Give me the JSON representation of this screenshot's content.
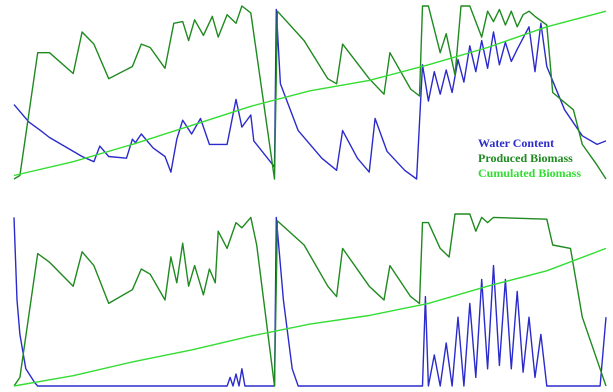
{
  "legend": {
    "items": [
      {
        "label": "Water Content",
        "color": "#2b2bcc"
      },
      {
        "label": "Produced Biomass",
        "color": "#1f8a1f"
      },
      {
        "label": "Cumulated Biomass",
        "color": "#33dd33"
      }
    ]
  },
  "chart_data": [
    {
      "type": "line",
      "title": "",
      "xlabel": "",
      "ylabel": "",
      "ylim": [
        0,
        1
      ],
      "grid": false,
      "legend_position": "right",
      "series": [
        {
          "name": "Water Content",
          "color": "#2b2bcc",
          "points": [
            [
              0,
              0.43
            ],
            [
              0.025,
              0.33
            ],
            [
              0.045,
              0.28
            ],
            [
              0.06,
              0.24
            ],
            [
              0.09,
              0.18
            ],
            [
              0.115,
              0.13
            ],
            [
              0.135,
              0.1
            ],
            [
              0.145,
              0.19
            ],
            [
              0.16,
              0.13
            ],
            [
              0.19,
              0.12
            ],
            [
              0.2,
              0.23
            ],
            [
              0.205,
              0.21
            ],
            [
              0.215,
              0.26
            ],
            [
              0.235,
              0.18
            ],
            [
              0.255,
              0.13
            ],
            [
              0.265,
              0.04
            ],
            [
              0.275,
              0.23
            ],
            [
              0.285,
              0.34
            ],
            [
              0.3,
              0.26
            ],
            [
              0.315,
              0.35
            ],
            [
              0.33,
              0.2
            ],
            [
              0.36,
              0.2
            ],
            [
              0.375,
              0.46
            ],
            [
              0.385,
              0.3
            ],
            [
              0.4,
              0.37
            ],
            [
              0.405,
              0.22
            ],
            [
              0.44,
              0.07
            ],
            [
              0.443,
              0.98
            ],
            [
              0.45,
              0.55
            ],
            [
              0.48,
              0.28
            ],
            [
              0.52,
              0.12
            ],
            [
              0.545,
              0.05
            ],
            [
              0.555,
              0.28
            ],
            [
              0.58,
              0.12
            ],
            [
              0.6,
              0.04
            ],
            [
              0.61,
              0.35
            ],
            [
              0.63,
              0.16
            ],
            [
              0.66,
              0.05
            ],
            [
              0.68,
              0.0
            ],
            [
              0.69,
              0.66
            ],
            [
              0.7,
              0.45
            ],
            [
              0.71,
              0.62
            ],
            [
              0.72,
              0.49
            ],
            [
              0.73,
              0.63
            ],
            [
              0.74,
              0.5
            ],
            [
              0.75,
              0.69
            ],
            [
              0.76,
              0.56
            ],
            [
              0.77,
              0.77
            ],
            [
              0.78,
              0.62
            ],
            [
              0.79,
              0.8
            ],
            [
              0.8,
              0.64
            ],
            [
              0.81,
              0.85
            ],
            [
              0.82,
              0.66
            ],
            [
              0.83,
              0.79
            ],
            [
              0.84,
              0.68
            ],
            [
              0.85,
              0.75
            ],
            [
              0.87,
              0.88
            ],
            [
              0.88,
              0.62
            ],
            [
              0.89,
              0.9
            ],
            [
              0.9,
              0.65
            ],
            [
              0.93,
              0.4
            ],
            [
              0.96,
              0.25
            ],
            [
              0.985,
              0.2
            ],
            [
              1.0,
              0.22
            ]
          ]
        },
        {
          "name": "Produced Biomass",
          "color": "#1f8a1f",
          "points": [
            [
              0,
              0.0
            ],
            [
              0.01,
              0.02
            ],
            [
              0.04,
              0.73
            ],
            [
              0.06,
              0.73
            ],
            [
              0.1,
              0.61
            ],
            [
              0.115,
              0.85
            ],
            [
              0.135,
              0.78
            ],
            [
              0.16,
              0.58
            ],
            [
              0.2,
              0.65
            ],
            [
              0.215,
              0.78
            ],
            [
              0.23,
              0.76
            ],
            [
              0.255,
              0.64
            ],
            [
              0.27,
              0.9
            ],
            [
              0.285,
              0.91
            ],
            [
              0.295,
              0.8
            ],
            [
              0.305,
              0.92
            ],
            [
              0.32,
              0.83
            ],
            [
              0.335,
              0.94
            ],
            [
              0.345,
              0.82
            ],
            [
              0.36,
              0.95
            ],
            [
              0.375,
              0.9
            ],
            [
              0.385,
              1.0
            ],
            [
              0.4,
              0.96
            ],
            [
              0.44,
              0.0
            ],
            [
              0.445,
              0.97
            ],
            [
              0.49,
              0.8
            ],
            [
              0.53,
              0.58
            ],
            [
              0.545,
              0.55
            ],
            [
              0.555,
              0.78
            ],
            [
              0.6,
              0.58
            ],
            [
              0.625,
              0.49
            ],
            [
              0.635,
              0.73
            ],
            [
              0.67,
              0.52
            ],
            [
              0.685,
              0.48
            ],
            [
              0.69,
              1.0
            ],
            [
              0.7,
              1.0
            ],
            [
              0.72,
              0.73
            ],
            [
              0.73,
              0.84
            ],
            [
              0.745,
              0.6
            ],
            [
              0.755,
              1.0
            ],
            [
              0.77,
              1.0
            ],
            [
              0.79,
              0.82
            ],
            [
              0.8,
              0.97
            ],
            [
              0.81,
              0.91
            ],
            [
              0.82,
              0.98
            ],
            [
              0.83,
              0.89
            ],
            [
              0.84,
              0.97
            ],
            [
              0.85,
              0.88
            ],
            [
              0.86,
              0.95
            ],
            [
              0.87,
              0.97
            ],
            [
              0.88,
              0.94
            ],
            [
              0.9,
              0.89
            ],
            [
              0.91,
              0.5
            ],
            [
              0.945,
              0.4
            ],
            [
              0.96,
              0.2
            ],
            [
              0.985,
              0.08
            ],
            [
              1.0,
              0.0
            ]
          ]
        },
        {
          "name": "Cumulated Biomass",
          "color": "#33dd33",
          "points": [
            [
              0,
              0.02
            ],
            [
              0.1,
              0.1
            ],
            [
              0.2,
              0.2
            ],
            [
              0.3,
              0.31
            ],
            [
              0.4,
              0.42
            ],
            [
              0.5,
              0.51
            ],
            [
              0.6,
              0.57
            ],
            [
              0.7,
              0.66
            ],
            [
              0.8,
              0.76
            ],
            [
              0.9,
              0.88
            ],
            [
              1.0,
              0.97
            ]
          ]
        }
      ]
    },
    {
      "type": "line",
      "title": "",
      "xlabel": "",
      "ylabel": "",
      "ylim": [
        0,
        1
      ],
      "grid": false,
      "series": [
        {
          "name": "Water Content",
          "color": "#2b2bcc",
          "points": [
            [
              0,
              0.98
            ],
            [
              0.005,
              0.5
            ],
            [
              0.01,
              0.3
            ],
            [
              0.02,
              0.1
            ],
            [
              0.035,
              0.02
            ],
            [
              0.04,
              0.0
            ],
            [
              0.36,
              0.0
            ],
            [
              0.365,
              0.05
            ],
            [
              0.37,
              0.0
            ],
            [
              0.375,
              0.07
            ],
            [
              0.38,
              0.0
            ],
            [
              0.385,
              0.1
            ],
            [
              0.39,
              0.0
            ],
            [
              0.44,
              0.0
            ],
            [
              0.443,
              0.98
            ],
            [
              0.455,
              0.5
            ],
            [
              0.47,
              0.1
            ],
            [
              0.48,
              0.0
            ],
            [
              0.69,
              0.0
            ],
            [
              0.695,
              0.52
            ],
            [
              0.7,
              0.0
            ],
            [
              0.71,
              0.18
            ],
            [
              0.72,
              0.0
            ],
            [
              0.73,
              0.25
            ],
            [
              0.74,
              0.0
            ],
            [
              0.75,
              0.4
            ],
            [
              0.76,
              0.0
            ],
            [
              0.77,
              0.48
            ],
            [
              0.78,
              0.05
            ],
            [
              0.79,
              0.62
            ],
            [
              0.8,
              0.1
            ],
            [
              0.81,
              0.7
            ],
            [
              0.82,
              0.12
            ],
            [
              0.83,
              0.62
            ],
            [
              0.84,
              0.1
            ],
            [
              0.85,
              0.55
            ],
            [
              0.86,
              0.08
            ],
            [
              0.87,
              0.4
            ],
            [
              0.88,
              0.05
            ],
            [
              0.89,
              0.3
            ],
            [
              0.9,
              0.0
            ],
            [
              0.99,
              0.0
            ],
            [
              1.0,
              0.4
            ]
          ]
        },
        {
          "name": "Produced Biomass",
          "color": "#1f8a1f",
          "points": [
            [
              0,
              0.0
            ],
            [
              0.01,
              0.05
            ],
            [
              0.04,
              0.77
            ],
            [
              0.06,
              0.72
            ],
            [
              0.1,
              0.58
            ],
            [
              0.115,
              0.78
            ],
            [
              0.135,
              0.7
            ],
            [
              0.16,
              0.48
            ],
            [
              0.2,
              0.56
            ],
            [
              0.215,
              0.68
            ],
            [
              0.23,
              0.65
            ],
            [
              0.255,
              0.5
            ],
            [
              0.265,
              0.75
            ],
            [
              0.275,
              0.6
            ],
            [
              0.285,
              0.83
            ],
            [
              0.295,
              0.58
            ],
            [
              0.305,
              0.7
            ],
            [
              0.32,
              0.53
            ],
            [
              0.33,
              0.68
            ],
            [
              0.34,
              0.6
            ],
            [
              0.345,
              0.9
            ],
            [
              0.36,
              0.8
            ],
            [
              0.375,
              0.95
            ],
            [
              0.385,
              0.92
            ],
            [
              0.4,
              0.98
            ],
            [
              0.41,
              0.82
            ],
            [
              0.44,
              0.0
            ],
            [
              0.445,
              0.96
            ],
            [
              0.49,
              0.82
            ],
            [
              0.53,
              0.58
            ],
            [
              0.545,
              0.52
            ],
            [
              0.555,
              0.8
            ],
            [
              0.6,
              0.58
            ],
            [
              0.625,
              0.5
            ],
            [
              0.635,
              0.7
            ],
            [
              0.67,
              0.52
            ],
            [
              0.685,
              0.48
            ],
            [
              0.69,
              0.95
            ],
            [
              0.7,
              0.95
            ],
            [
              0.72,
              0.8
            ],
            [
              0.735,
              0.75
            ],
            [
              0.745,
              1.0
            ],
            [
              0.77,
              1.0
            ],
            [
              0.78,
              0.9
            ],
            [
              0.79,
              0.98
            ],
            [
              0.8,
              0.95
            ],
            [
              0.81,
              0.98
            ],
            [
              0.9,
              0.97
            ],
            [
              0.91,
              0.82
            ],
            [
              0.94,
              0.8
            ],
            [
              0.96,
              0.4
            ],
            [
              0.985,
              0.15
            ],
            [
              1.0,
              0.0
            ]
          ]
        },
        {
          "name": "Cumulated Biomass",
          "color": "#33dd33",
          "points": [
            [
              0,
              0.0
            ],
            [
              0.1,
              0.06
            ],
            [
              0.2,
              0.14
            ],
            [
              0.3,
              0.21
            ],
            [
              0.4,
              0.29
            ],
            [
              0.5,
              0.36
            ],
            [
              0.6,
              0.41
            ],
            [
              0.7,
              0.48
            ],
            [
              0.8,
              0.58
            ],
            [
              0.9,
              0.67
            ],
            [
              1.0,
              0.8
            ]
          ]
        }
      ]
    }
  ]
}
